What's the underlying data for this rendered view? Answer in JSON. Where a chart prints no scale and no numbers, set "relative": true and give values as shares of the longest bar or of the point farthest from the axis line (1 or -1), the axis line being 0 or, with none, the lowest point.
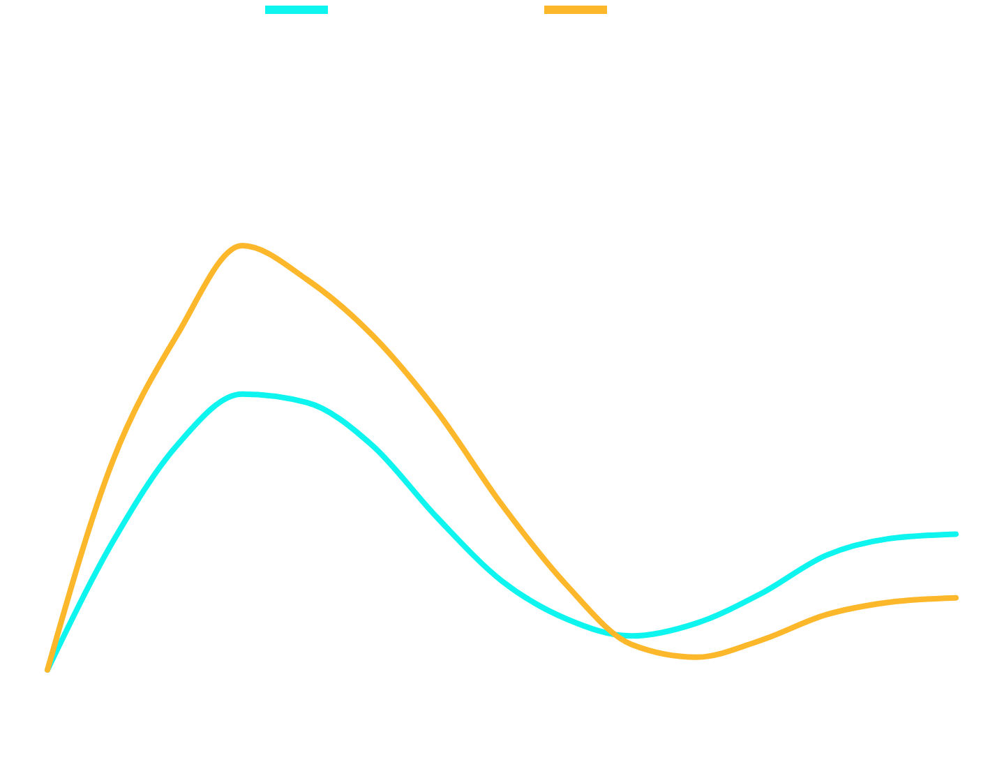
{
  "chart_data": {
    "type": "line",
    "relative": true,
    "categories": [
      null,
      null,
      null,
      null,
      null,
      null,
      null,
      null,
      null,
      null,
      null,
      null,
      null,
      null,
      null
    ],
    "series": [
      {
        "color": "#0ef5f0",
        "values": [
          0,
          0.3,
          0.53,
          0.65,
          0.63,
          0.53,
          0.36,
          0.21,
          0.12,
          0.08,
          0.11,
          0.18,
          0.27,
          0.31,
          0.32
        ]
      },
      {
        "color": "#fcb72a",
        "values": [
          0,
          0.49,
          0.79,
          1,
          0.92,
          0.79,
          0.61,
          0.39,
          0.2,
          0.06,
          0.03,
          0.07,
          0.13,
          0.16,
          0.17
        ]
      }
    ]
  }
}
